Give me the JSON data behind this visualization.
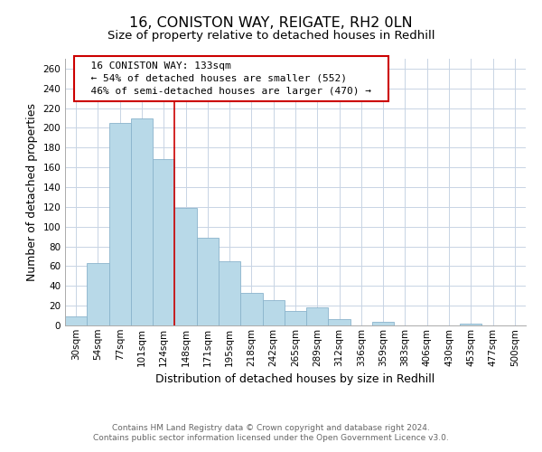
{
  "title1": "16, CONISTON WAY, REIGATE, RH2 0LN",
  "title2": "Size of property relative to detached houses in Redhill",
  "xlabel": "Distribution of detached houses by size in Redhill",
  "ylabel": "Number of detached properties",
  "bar_labels": [
    "30sqm",
    "54sqm",
    "77sqm",
    "101sqm",
    "124sqm",
    "148sqm",
    "171sqm",
    "195sqm",
    "218sqm",
    "242sqm",
    "265sqm",
    "289sqm",
    "312sqm",
    "336sqm",
    "359sqm",
    "383sqm",
    "406sqm",
    "430sqm",
    "453sqm",
    "477sqm",
    "500sqm"
  ],
  "bar_values": [
    9,
    63,
    205,
    210,
    168,
    119,
    89,
    65,
    33,
    26,
    15,
    18,
    6,
    0,
    4,
    0,
    0,
    0,
    2,
    0,
    0
  ],
  "bar_color": "#b8d9e8",
  "bar_edge_color": "#8ab4cc",
  "vline_x": 4.5,
  "vline_color": "#cc0000",
  "ylim": [
    0,
    270
  ],
  "yticks": [
    0,
    20,
    40,
    60,
    80,
    100,
    120,
    140,
    160,
    180,
    200,
    220,
    240,
    260
  ],
  "annotation_title": "16 CONISTON WAY: 133sqm",
  "annotation_line1": "← 54% of detached houses are smaller (552)",
  "annotation_line2": "46% of semi-detached houses are larger (470) →",
  "footnote1": "Contains HM Land Registry data © Crown copyright and database right 2024.",
  "footnote2": "Contains public sector information licensed under the Open Government Licence v3.0.",
  "bg_color": "#ffffff",
  "grid_color": "#c8d4e4",
  "title_fontsize": 11.5,
  "subtitle_fontsize": 9.5,
  "axis_label_fontsize": 9,
  "tick_fontsize": 7.5,
  "footnote_fontsize": 6.5,
  "annotation_fontsize": 8
}
